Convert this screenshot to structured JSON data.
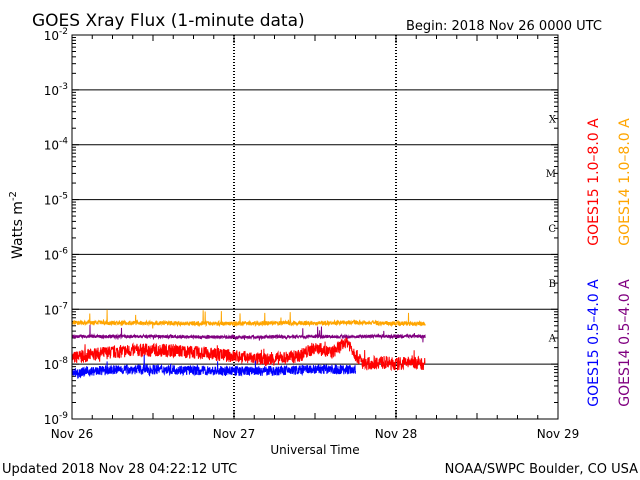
{
  "chart_data": {
    "type": "line",
    "title": "GOES Xray Flux (1-minute data)",
    "begin_label": "Begin:  2018 Nov 26 0000 UTC",
    "xlabel": "Universal Time",
    "ylabel_main": "Watts m",
    "ylabel_sup": "-2",
    "y_scale": "log",
    "ylim": [
      1e-09,
      0.01
    ],
    "xlim_days": [
      0,
      3
    ],
    "x_ticks": [
      {
        "day": 0,
        "label": "Nov 26"
      },
      {
        "day": 1,
        "label": "Nov 27"
      },
      {
        "day": 2,
        "label": "Nov 28"
      },
      {
        "day": 3,
        "label": "Nov 29"
      }
    ],
    "y_ticks": [
      {
        "exp": -2,
        "base": "10",
        "sup": "-2"
      },
      {
        "exp": -3,
        "base": "10",
        "sup": "-3"
      },
      {
        "exp": -4,
        "base": "10",
        "sup": "-4"
      },
      {
        "exp": -5,
        "base": "10",
        "sup": "-5"
      },
      {
        "exp": -6,
        "base": "10",
        "sup": "-6"
      },
      {
        "exp": -7,
        "base": "10",
        "sup": "-7"
      },
      {
        "exp": -8,
        "base": "10",
        "sup": "-8"
      },
      {
        "exp": -9,
        "base": "10",
        "sup": "-9"
      }
    ],
    "flare_classes": [
      {
        "label": "X",
        "exp": -3.5
      },
      {
        "label": "M",
        "exp": -4.5
      },
      {
        "label": "C",
        "exp": -5.5
      },
      {
        "label": "B",
        "exp": -6.5
      },
      {
        "label": "A",
        "exp": -7.5
      }
    ],
    "grid": "horizontal lines at each decade from 1e-8 to 1e-3, dotted vertical lines at day boundaries",
    "data_end_day": 2.18,
    "series": [
      {
        "name": "GOES15 1.0-8.0 A",
        "color": "#ff0000",
        "x_days": [
          0,
          0.2,
          0.4,
          0.6,
          0.8,
          1.0,
          1.2,
          1.4,
          1.5,
          1.6,
          1.7,
          1.75,
          1.8,
          1.9,
          2.0,
          2.1,
          2.18
        ],
        "values": [
          1.3e-08,
          1.6e-08,
          1.8e-08,
          1.8e-08,
          1.6e-08,
          1.4e-08,
          1.2e-08,
          1.4e-08,
          2e-08,
          1.6e-08,
          2.6e-08,
          1.5e-08,
          1e-08,
          1.1e-08,
          1e-08,
          1.1e-08,
          1e-08
        ]
      },
      {
        "name": "GOES15 0.5-4.0 A",
        "color": "#0000ff",
        "x_days": [
          0,
          0.3,
          0.6,
          0.9,
          1.2,
          1.5,
          1.7,
          1.75
        ],
        "values": [
          7e-09,
          8e-09,
          8e-09,
          7.5e-09,
          7.5e-09,
          8e-09,
          8e-09,
          8e-09
        ]
      },
      {
        "name": "GOES14 1.0-8.0 A",
        "color": "#ffa500",
        "x_days": [
          0,
          0.5,
          1.0,
          1.5,
          1.75,
          2.0,
          2.18
        ],
        "values": [
          5.7e-08,
          5.6e-08,
          5.5e-08,
          5.6e-08,
          5.8e-08,
          5.5e-08,
          5.4e-08
        ]
      },
      {
        "name": "GOES14 0.5-4.0 A",
        "color": "#800080",
        "x_days": [
          0,
          0.5,
          1.0,
          1.5,
          2.0,
          2.18
        ],
        "values": [
          3.2e-08,
          3.2e-08,
          3.1e-08,
          3.2e-08,
          3.2e-08,
          3.2e-08
        ]
      }
    ],
    "legend": [
      {
        "label": "GOES15 1.0–8.0 A",
        "color": "#ff0000"
      },
      {
        "label": "GOES14 1.0–8.0 A",
        "color": "#ffa500"
      },
      {
        "label": "GOES15 0.5–4.0 A",
        "color": "#0000ff"
      },
      {
        "label": "GOES14 0.5–4.0 A",
        "color": "#800080"
      }
    ]
  },
  "footer": {
    "updated": "Updated 2018 Nov 28 04:22:12 UTC",
    "source": "NOAA/SWPC Boulder, CO USA"
  }
}
